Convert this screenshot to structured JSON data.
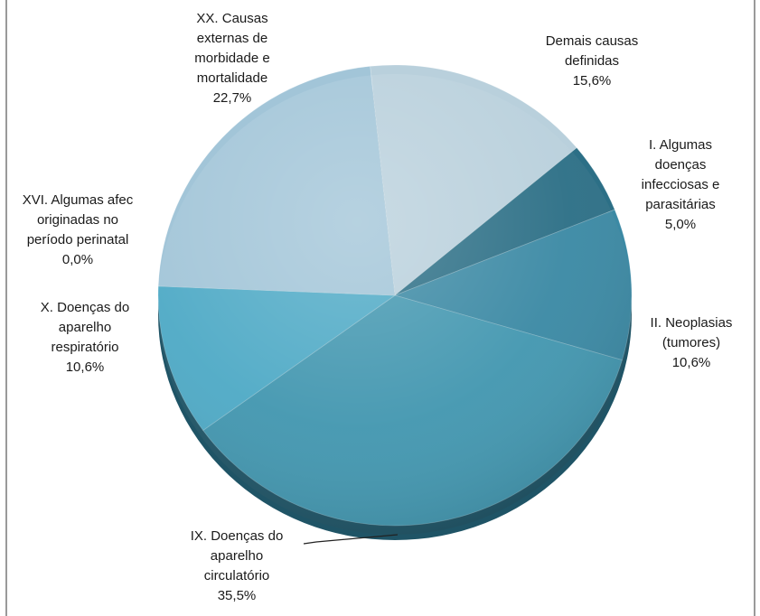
{
  "chart_data": {
    "type": "pie",
    "slices": [
      {
        "label_lines": [
          "Demais causas",
          "definidas"
        ],
        "value_text": "15,6%",
        "value": 15.6,
        "color": "#b9d0dc"
      },
      {
        "label_lines": [
          "I.  Algumas",
          "doenças",
          "infecciosas e",
          "parasitárias"
        ],
        "value_text": "5,0%",
        "value": 5.0,
        "color": "#2c6f86"
      },
      {
        "label_lines": [
          "II.  Neoplasias",
          "(tumores)"
        ],
        "value_text": "10,6%",
        "value": 10.6,
        "color": "#3b89a4"
      },
      {
        "label_lines": [
          "IX.  Doenças do",
          "aparelho",
          "circulatório"
        ],
        "value_text": "35,5%",
        "value": 35.5,
        "color": "#4397b0"
      },
      {
        "label_lines": [
          "X.  Doenças do",
          "aparelho",
          "respiratório"
        ],
        "value_text": "10,6%",
        "value": 10.6,
        "color": "#4faac6"
      },
      {
        "label_lines": [
          "XVI. Algumas afec",
          "originadas no",
          "período perinatal"
        ],
        "value_text": "0,0%",
        "value": 0.0,
        "color": "#7fc0d6"
      },
      {
        "label_lines": [
          "XX.  Causas",
          "externas de",
          "morbidade e",
          "mortalidade"
        ],
        "value_text": "22,7%",
        "value": 22.7,
        "color": "#a2c5d8"
      }
    ]
  }
}
